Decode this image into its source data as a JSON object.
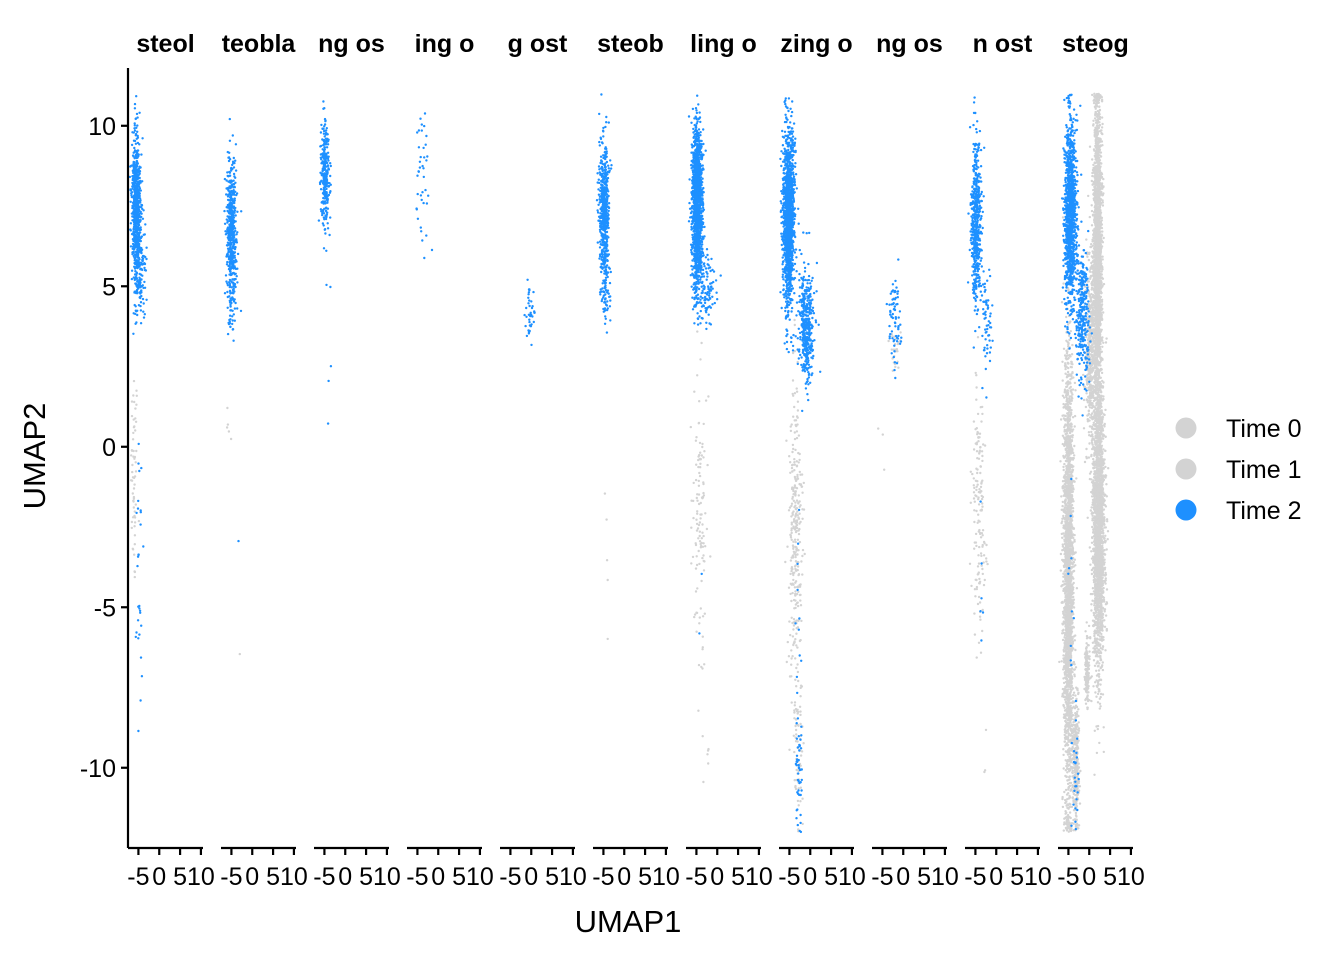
{
  "chart_data": {
    "type": "scatter",
    "xlabel": "UMAP1",
    "ylabel": "UMAP2",
    "ylim": [
      -12.5,
      11.8
    ],
    "xlim": [
      -7.5,
      10.5
    ],
    "x_ticks": [
      -5,
      0,
      5,
      10
    ],
    "x_tick_labels": [
      "-5",
      "0",
      "5",
      "10"
    ],
    "y_ticks": [
      -10,
      -5,
      0,
      5,
      10
    ],
    "y_tick_labels": [
      "-10",
      "-5",
      "0",
      "5",
      "10"
    ],
    "grid": false,
    "legend_position": "right",
    "legend": [
      {
        "name": "Time 0",
        "color": "#d3d3d3"
      },
      {
        "name": "Time 1",
        "color": "#d3d3d3"
      },
      {
        "name": "Time 2",
        "color": "#1e90ff"
      }
    ],
    "facets": [
      {
        "title": "steol",
        "clusters": [
          {
            "series": "Time 2",
            "x": -5.5,
            "y": 7.5,
            "sx": 0.5,
            "sy": 1.1,
            "n": 700
          },
          {
            "series": "Time 2",
            "x": -4.5,
            "y": 5.3,
            "sx": 0.7,
            "sy": 0.7,
            "n": 120
          },
          {
            "series": "Time 0",
            "x": -6.0,
            "y": -1.0,
            "sx": 0.4,
            "sy": 1.8,
            "n": 60
          },
          {
            "series": "Time 2",
            "x": -4.8,
            "y": -4.0,
            "sx": 0.4,
            "sy": 3.2,
            "n": 30
          }
        ]
      },
      {
        "title": "teobla",
        "clusters": [
          {
            "series": "Time 2",
            "x": -5.0,
            "y": 6.8,
            "sx": 0.6,
            "sy": 1.1,
            "n": 500
          },
          {
            "series": "Time 2",
            "x": -5.0,
            "y": 4.3,
            "sx": 0.6,
            "sy": 0.6,
            "n": 40
          },
          {
            "series": "Time 0",
            "x": -5.5,
            "y": 0.6,
            "sx": 0.4,
            "sy": 0.4,
            "n": 5
          },
          {
            "series": "Time 2",
            "x": -3.2,
            "y": -3.0,
            "sx": 0.1,
            "sy": 0.1,
            "n": 1
          },
          {
            "series": "Time 0",
            "x": -3.0,
            "y": -6.4,
            "sx": 0.1,
            "sy": 0.1,
            "n": 1
          }
        ]
      },
      {
        "title": "ng os",
        "clusters": [
          {
            "series": "Time 2",
            "x": -4.8,
            "y": 8.5,
            "sx": 0.5,
            "sy": 0.8,
            "n": 300
          },
          {
            "series": "Time 2",
            "x": -4.3,
            "y": 3.2,
            "sx": 0.5,
            "sy": 1.2,
            "n": 5
          }
        ]
      },
      {
        "title": "ing o",
        "clusters": [
          {
            "series": "Time 2",
            "x": -3.8,
            "y": 8.3,
            "sx": 0.8,
            "sy": 1.2,
            "n": 40
          }
        ]
      },
      {
        "title": "g ost",
        "clusters": [
          {
            "series": "Time 2",
            "x": -0.2,
            "y": 4.1,
            "sx": 0.6,
            "sy": 0.5,
            "n": 40
          }
        ]
      },
      {
        "title": "steob",
        "clusters": [
          {
            "series": "Time 2",
            "x": -4.8,
            "y": 7.5,
            "sx": 0.6,
            "sy": 1.0,
            "n": 500
          },
          {
            "series": "Time 2",
            "x": -4.6,
            "y": 5.0,
            "sx": 0.6,
            "sy": 0.6,
            "n": 80
          },
          {
            "series": "Time 0",
            "x": -4.3,
            "y": -3.0,
            "sx": 0.3,
            "sy": 1.5,
            "n": 5
          }
        ]
      },
      {
        "title": "ling o",
        "clusters": [
          {
            "series": "Time 2",
            "x": -4.8,
            "y": 7.5,
            "sx": 0.6,
            "sy": 1.2,
            "n": 1500
          },
          {
            "series": "Time 2",
            "x": -2.5,
            "y": 5.0,
            "sx": 1.2,
            "sy": 0.6,
            "n": 100
          },
          {
            "series": "Time 0",
            "x": -4.2,
            "y": -2.5,
            "sx": 0.8,
            "sy": 2.5,
            "n": 120
          },
          {
            "series": "Time 0",
            "x": -2.5,
            "y": -10.0,
            "sx": 0.6,
            "sy": 1.0,
            "n": 6
          },
          {
            "series": "Time 2",
            "x": -3.8,
            "y": -6.0,
            "sx": 0.4,
            "sy": 1.0,
            "n": 2
          }
        ]
      },
      {
        "title": "zing o",
        "clusters": [
          {
            "series": "Time 2",
            "x": -5.2,
            "y": 7.2,
            "sx": 0.7,
            "sy": 1.3,
            "n": 1400
          },
          {
            "series": "Time 2",
            "x": -1.0,
            "y": 3.8,
            "sx": 0.9,
            "sy": 0.9,
            "n": 400
          },
          {
            "series": "Time 0",
            "x": -3.5,
            "y": -3.0,
            "sx": 0.8,
            "sy": 2.5,
            "n": 300
          },
          {
            "series": "Time 0",
            "x": -2.8,
            "y": -9.5,
            "sx": 0.5,
            "sy": 1.0,
            "n": 60
          },
          {
            "series": "Time 2",
            "x": -2.6,
            "y": -9.8,
            "sx": 0.4,
            "sy": 1.0,
            "n": 50
          },
          {
            "series": "Time 2",
            "x": -3.0,
            "y": -5.0,
            "sx": 0.4,
            "sy": 1.5,
            "n": 8
          }
        ]
      },
      {
        "title": "ng os",
        "clusters": [
          {
            "series": "Time 2",
            "x": -2.0,
            "y": 4.0,
            "sx": 0.8,
            "sy": 0.7,
            "n": 70
          },
          {
            "series": "Time 0",
            "x": -1.8,
            "y": 3.0,
            "sx": 0.6,
            "sy": 0.3,
            "n": 25
          },
          {
            "series": "Time 0",
            "x": -5.0,
            "y": 0.0,
            "sx": 0.5,
            "sy": 1.0,
            "n": 3
          }
        ]
      },
      {
        "title": "n ost",
        "clusters": [
          {
            "series": "Time 2",
            "x": -4.8,
            "y": 7.0,
            "sx": 0.6,
            "sy": 1.2,
            "n": 500
          },
          {
            "series": "Time 2",
            "x": -2.2,
            "y": 3.8,
            "sx": 0.7,
            "sy": 0.8,
            "n": 60
          },
          {
            "series": "Time 0",
            "x": -4.3,
            "y": -2.0,
            "sx": 0.7,
            "sy": 2.0,
            "n": 150
          },
          {
            "series": "Time 2",
            "x": -3.5,
            "y": -3.0,
            "sx": 0.4,
            "sy": 1.5,
            "n": 6
          },
          {
            "series": "Time 0",
            "x": -2.5,
            "y": -9.0,
            "sx": 0.3,
            "sy": 1.0,
            "n": 3
          }
        ]
      },
      {
        "title": "steog",
        "clusters": [
          {
            "series": "Time 0",
            "x": -5.0,
            "y": -4.0,
            "sx": 0.6,
            "sy": 3.5,
            "n": 2500
          },
          {
            "series": "Time 0",
            "x": -3.2,
            "y": -9.8,
            "sx": 0.4,
            "sy": 1.0,
            "n": 300
          },
          {
            "series": "Time 0",
            "x": 2.0,
            "y": 6.0,
            "sx": 0.5,
            "sy": 2.4,
            "n": 2200
          },
          {
            "series": "Time 0",
            "x": 2.3,
            "y": -2.5,
            "sx": 0.7,
            "sy": 2.2,
            "n": 2200
          },
          {
            "series": "Time 0",
            "x": 0.3,
            "y": 3.0,
            "sx": 0.6,
            "sy": 1.5,
            "n": 500
          },
          {
            "series": "Time 0",
            "x": -0.5,
            "y": -7.0,
            "sx": 0.3,
            "sy": 0.5,
            "n": 150
          },
          {
            "series": "Time 2",
            "x": -4.5,
            "y": 7.3,
            "sx": 0.7,
            "sy": 1.4,
            "n": 1200
          },
          {
            "series": "Time 2",
            "x": -1.6,
            "y": 4.2,
            "sx": 0.8,
            "sy": 1.0,
            "n": 300
          },
          {
            "series": "Time 2",
            "x": -3.3,
            "y": -10.0,
            "sx": 0.4,
            "sy": 1.0,
            "n": 25
          },
          {
            "series": "Time 2",
            "x": -4.5,
            "y": -4.0,
            "sx": 0.4,
            "sy": 2.0,
            "n": 10
          }
        ]
      }
    ]
  }
}
